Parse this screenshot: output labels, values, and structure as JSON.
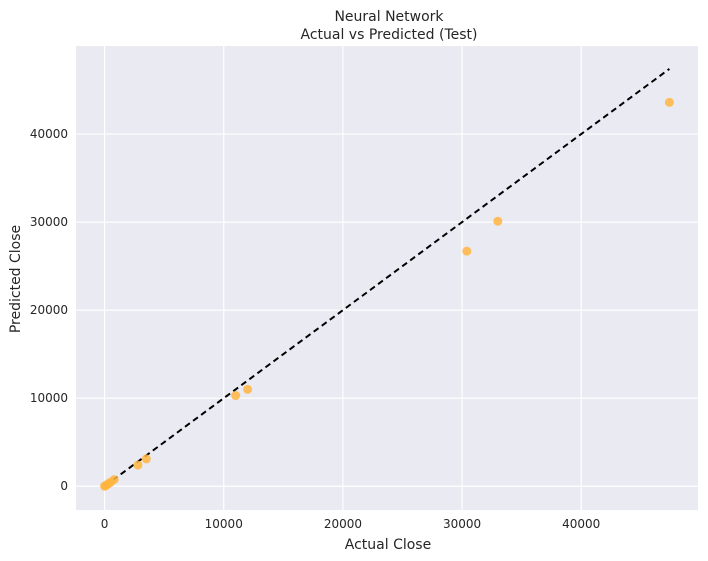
{
  "chart_data": {
    "type": "scatter",
    "title": "Neural Network",
    "subtitle": "Actual vs Predicted (Test)",
    "xlabel": "Actual Close",
    "ylabel": "Predicted Close",
    "xlim": [
      -2400,
      49800
    ],
    "ylim": [
      -2700,
      50000
    ],
    "xticks": [
      0,
      10000,
      20000,
      30000,
      40000
    ],
    "yticks": [
      0,
      10000,
      20000,
      30000,
      40000
    ],
    "grid": true,
    "series": [
      {
        "x": [
          0,
          80,
          150,
          300,
          500,
          800,
          2800,
          3500,
          11000,
          12000,
          30400,
          33000,
          47400
        ],
        "y": [
          0,
          60,
          120,
          280,
          450,
          750,
          2400,
          3100,
          10300,
          11000,
          26700,
          30100,
          43600
        ],
        "color": "#FFB53F"
      }
    ],
    "reference_line": {
      "style": "dashed",
      "color": "#000000",
      "x": [
        0,
        47400
      ],
      "y": [
        0,
        47400
      ]
    },
    "colors": {
      "plot_background": "#EAEAF2",
      "grid": "#FFFFFF",
      "text": "#262626"
    }
  }
}
